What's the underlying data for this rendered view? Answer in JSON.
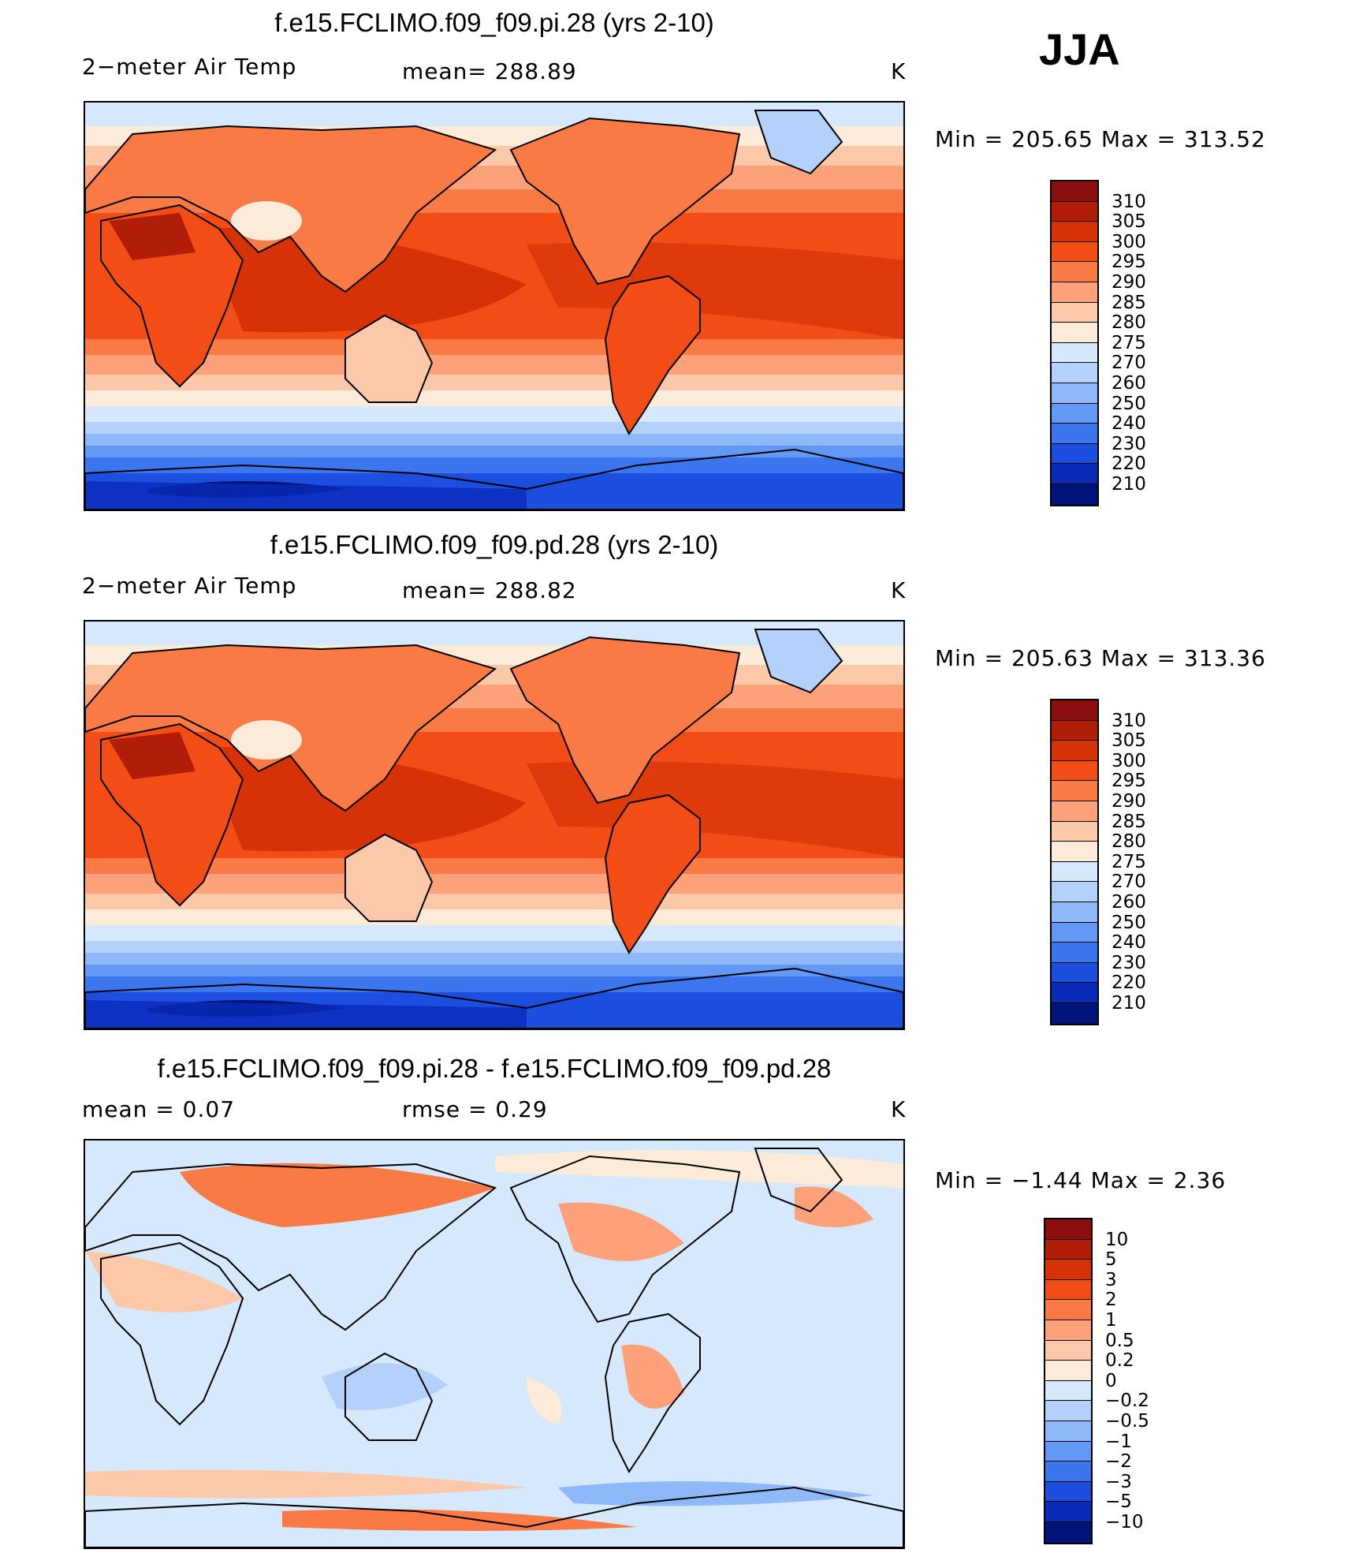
{
  "season": "JJA",
  "panels": [
    {
      "title": "f.e15.FCLIMO.f09_f09.pi.28 (yrs 2-10)",
      "left_label": "2−meter Air Temp",
      "center_label": "mean=  288.89",
      "units": "K",
      "minmax": "Min  =  205.65  Max  =  313.52",
      "colorbar": {
        "labels": [
          "310",
          "305",
          "300",
          "295",
          "290",
          "285",
          "280",
          "275",
          "270",
          "260",
          "250",
          "240",
          "230",
          "220",
          "210"
        ],
        "colors": [
          "#8b0d0d",
          "#b01e0a",
          "#d63208",
          "#f24d16",
          "#fa7a45",
          "#fda17a",
          "#fcc8aa",
          "#fdebd9",
          "#d6e8fb",
          "#b3d1fb",
          "#8fb8f9",
          "#6399f4",
          "#3b76ee",
          "#1c4ee0",
          "#0a2ab8",
          "#00147a"
        ]
      },
      "map_style": "warm"
    },
    {
      "title": "f.e15.FCLIMO.f09_f09.pd.28 (yrs 2-10)",
      "left_label": "2−meter Air Temp",
      "center_label": "mean=  288.82",
      "units": "K",
      "minmax": "Min  =  205.63  Max  =  313.36",
      "colorbar": {
        "labels": [
          "310",
          "305",
          "300",
          "295",
          "290",
          "285",
          "280",
          "275",
          "270",
          "260",
          "250",
          "240",
          "230",
          "220",
          "210"
        ],
        "colors": [
          "#8b0d0d",
          "#b01e0a",
          "#d63208",
          "#f24d16",
          "#fa7a45",
          "#fda17a",
          "#fcc8aa",
          "#fdebd9",
          "#d6e8fb",
          "#b3d1fb",
          "#8fb8f9",
          "#6399f4",
          "#3b76ee",
          "#1c4ee0",
          "#0a2ab8",
          "#00147a"
        ]
      },
      "map_style": "warm"
    },
    {
      "title": "f.e15.FCLIMO.f09_f09.pi.28 - f.e15.FCLIMO.f09_f09.pd.28",
      "left_label": "mean  =     0.07",
      "center_label": "rmse  =     0.29",
      "units": "K",
      "minmax": "Min  =    −1.44  Max  =      2.36",
      "colorbar": {
        "labels": [
          "10",
          "5",
          "3",
          "2",
          "1",
          "0.5",
          "0.2",
          "0",
          "−0.2",
          "−0.5",
          "−1",
          "−2",
          "−3",
          "−5",
          "−10"
        ],
        "colors": [
          "#8b0d0d",
          "#b01e0a",
          "#d63208",
          "#f24d16",
          "#fa7a45",
          "#fda17a",
          "#fcc8aa",
          "#fdebd9",
          "#d6e8fb",
          "#b3d1fb",
          "#8fb8f9",
          "#6399f4",
          "#3b76ee",
          "#1c4ee0",
          "#0a2ab8",
          "#00147a"
        ]
      },
      "map_style": "diff"
    }
  ]
}
